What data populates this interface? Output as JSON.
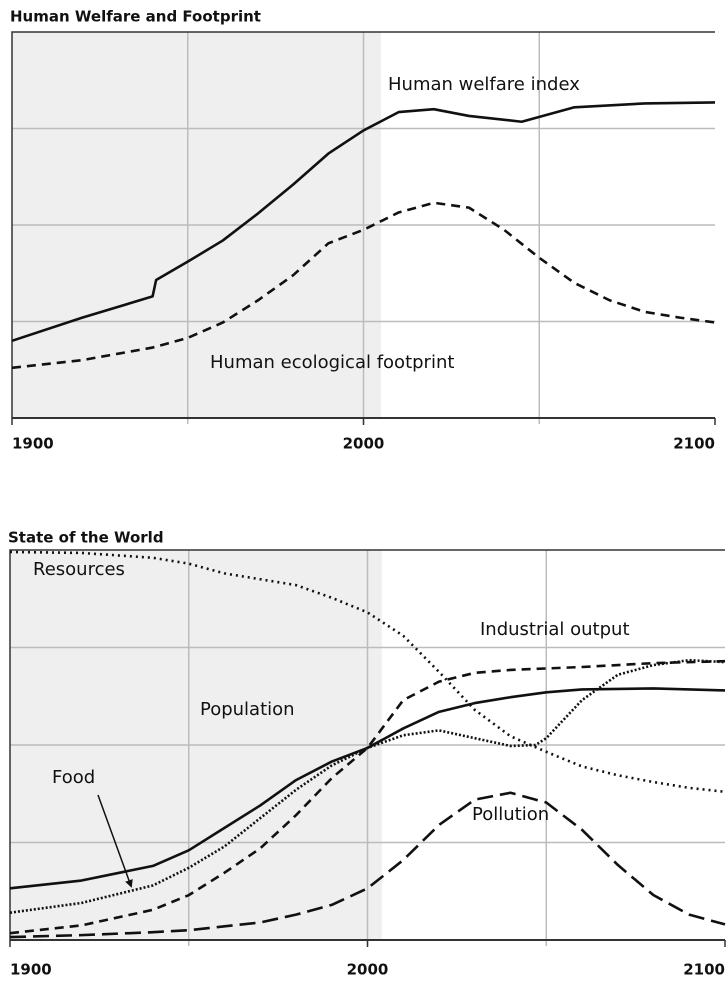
{
  "chart_data": [
    {
      "type": "line",
      "title": "Human Welfare and Footprint",
      "xlim": [
        1900,
        2100
      ],
      "ylim": [
        0,
        4
      ],
      "xticks": [
        1900,
        2000,
        2100
      ],
      "xgrid": [
        1950,
        2000,
        2050
      ],
      "yticks": [
        1,
        2,
        3
      ],
      "grid": true,
      "shaded_region": [
        1900,
        2005
      ],
      "shade_color": "#efefef",
      "series": [
        {
          "name": "Human welfare index",
          "color": "#111111",
          "style": "solid",
          "x": [
            1900,
            1920,
            1940,
            1941,
            1950,
            1960,
            1970,
            1980,
            1990,
            2000,
            2010,
            2020,
            2030,
            2045,
            2060,
            2080,
            2100
          ],
          "values": [
            0.8,
            1.04,
            1.26,
            1.43,
            1.62,
            1.84,
            2.12,
            2.42,
            2.74,
            2.98,
            3.17,
            3.2,
            3.13,
            3.07,
            3.22,
            3.26,
            3.27
          ]
        },
        {
          "name": "Human ecological footprint",
          "color": "#111111",
          "style": "dashed",
          "x": [
            1900,
            1920,
            1940,
            1950,
            1960,
            1970,
            1980,
            1990,
            2000,
            2010,
            2020,
            2030,
            2040,
            2050,
            2060,
            2070,
            2080,
            2090,
            2100
          ],
          "values": [
            0.52,
            0.6,
            0.73,
            0.83,
            0.99,
            1.22,
            1.48,
            1.81,
            1.95,
            2.13,
            2.23,
            2.18,
            1.95,
            1.66,
            1.4,
            1.22,
            1.1,
            1.04,
            0.99
          ]
        }
      ]
    },
    {
      "type": "line",
      "title": "State of the World",
      "xlim": [
        1900,
        2100
      ],
      "ylim": [
        0,
        4
      ],
      "xticks": [
        1900,
        2000,
        2100
      ],
      "xgrid": [
        1950,
        2000,
        2050
      ],
      "yticks": [
        1,
        2,
        3
      ],
      "grid": true,
      "shaded_region": [
        1900,
        2004
      ],
      "shade_color": "#efefef",
      "series": [
        {
          "name": "Resources",
          "color": "#111111",
          "style": "dotted",
          "x": [
            1900,
            1920,
            1940,
            1950,
            1960,
            1980,
            1990,
            2000,
            2010,
            2020,
            2030,
            2040,
            2050,
            2060,
            2070,
            2080,
            2090,
            2100
          ],
          "values": [
            3.98,
            3.97,
            3.92,
            3.86,
            3.76,
            3.64,
            3.51,
            3.36,
            3.12,
            2.75,
            2.36,
            2.09,
            1.93,
            1.78,
            1.69,
            1.62,
            1.56,
            1.52
          ]
        },
        {
          "name": "Industrial output",
          "color": "#111111",
          "style": "dashed",
          "x": [
            1900,
            1920,
            1940,
            1950,
            1960,
            1970,
            1980,
            1990,
            2000,
            2010,
            2020,
            2030,
            2040,
            2060,
            2080,
            2100
          ],
          "values": [
            0.07,
            0.15,
            0.31,
            0.46,
            0.69,
            0.94,
            1.28,
            1.66,
            1.97,
            2.46,
            2.65,
            2.74,
            2.77,
            2.8,
            2.84,
            2.86
          ]
        },
        {
          "name": "Population",
          "color": "#111111",
          "style": "solid",
          "x": [
            1900,
            1920,
            1940,
            1950,
            1960,
            1970,
            1980,
            1990,
            2000,
            2010,
            2020,
            2030,
            2040,
            2050,
            2060,
            2080,
            2100
          ],
          "values": [
            0.53,
            0.61,
            0.76,
            0.92,
            1.15,
            1.38,
            1.64,
            1.83,
            1.97,
            2.17,
            2.34,
            2.43,
            2.49,
            2.54,
            2.57,
            2.58,
            2.56
          ]
        },
        {
          "name": "Food",
          "color": "#111111",
          "style": "fine-dotted",
          "x": [
            1900,
            1920,
            1940,
            1950,
            1960,
            1970,
            1980,
            1990,
            2000,
            2010,
            2020,
            2030,
            2040,
            2047,
            2050,
            2060,
            2070,
            2080,
            2090,
            2100
          ],
          "values": [
            0.28,
            0.38,
            0.56,
            0.74,
            0.96,
            1.25,
            1.54,
            1.79,
            1.97,
            2.1,
            2.15,
            2.07,
            1.99,
            2.0,
            2.07,
            2.46,
            2.72,
            2.82,
            2.87,
            2.85
          ]
        },
        {
          "name": "Pollution",
          "color": "#111111",
          "style": "long-dashed",
          "x": [
            1900,
            1920,
            1940,
            1950,
            1960,
            1970,
            1980,
            1990,
            2000,
            2010,
            2020,
            2030,
            2040,
            2050,
            2060,
            2070,
            2080,
            2090,
            2100
          ],
          "values": [
            0.03,
            0.05,
            0.08,
            0.1,
            0.14,
            0.18,
            0.26,
            0.36,
            0.53,
            0.82,
            1.18,
            1.44,
            1.51,
            1.41,
            1.13,
            0.77,
            0.46,
            0.26,
            0.16
          ]
        }
      ]
    }
  ]
}
